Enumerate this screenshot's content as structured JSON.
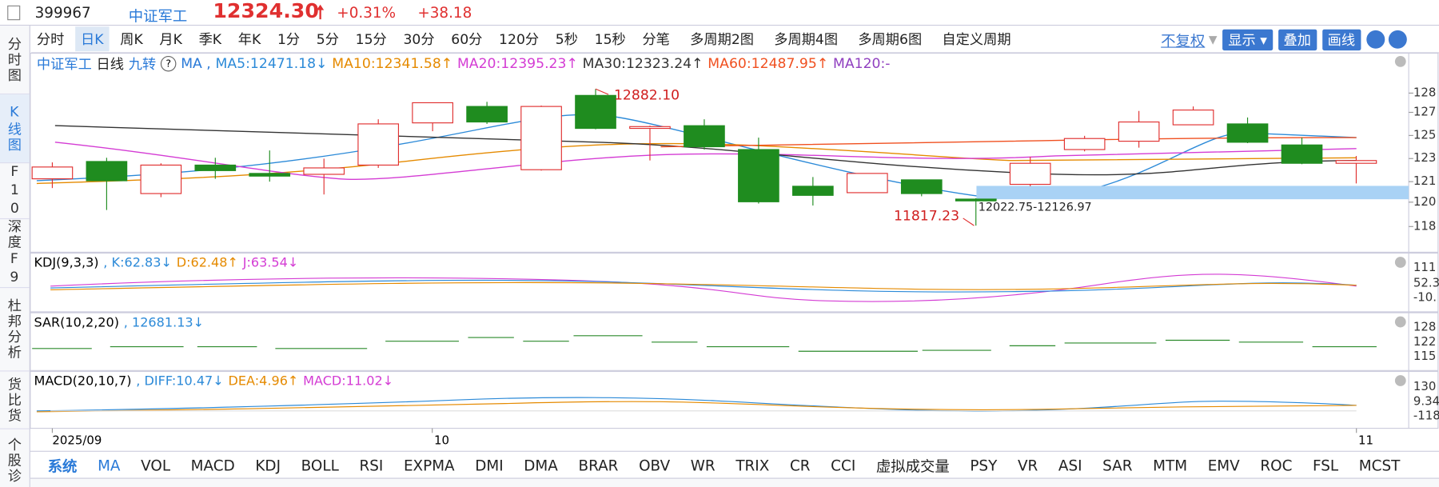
{
  "header": {
    "code": "399967",
    "name": "中证军工",
    "price": "12324.30",
    "change_pct": "+0.31%",
    "change": "+38.18"
  },
  "left_tabs": [
    "分时图",
    "K线图",
    "F10",
    "深度F9",
    "杜邦分析",
    "货比货",
    "个股诊"
  ],
  "period_tabs": [
    "分时",
    "日K",
    "周K",
    "月K",
    "季K",
    "年K",
    "1分",
    "5分",
    "15分",
    "30分",
    "60分",
    "120分",
    "5秒",
    "15秒",
    "分笔",
    "多周期2图",
    "多周期4图",
    "多周期6图",
    "自定义周期"
  ],
  "controls": {
    "adjust": "不复权",
    "show": "显示",
    "overlay": "叠加",
    "draw": "画线"
  },
  "legend": {
    "name": "中证军工",
    "period": "日线",
    "jiuzhuan": "九转",
    "ma": "MA ,",
    "ma5": "MA5:12471.18↓",
    "ma10": "MA10:12341.58↑",
    "ma20": "MA20:12395.23↑",
    "ma30": "MA30:12323.24↑",
    "ma60": "MA60:12487.95↑",
    "ma120": "MA120:-"
  },
  "price_axis": {
    "ticks": [
      {
        "value": 12850,
        "label": "128"
      },
      {
        "value": 12700,
        "label": "127"
      },
      {
        "value": 12520,
        "label": "125"
      },
      {
        "value": 12340,
        "label": "123"
      },
      {
        "value": 12160,
        "label": "121"
      },
      {
        "value": 12000,
        "label": "120"
      },
      {
        "value": 11810,
        "label": "118"
      }
    ]
  },
  "candles": [
    {
      "o": 12182,
      "h": 12310,
      "l": 12110,
      "c": 12274
    },
    {
      "o": 12317,
      "h": 12346,
      "l": 11939,
      "c": 12167
    },
    {
      "o": 12067,
      "h": 12303,
      "l": 12039,
      "c": 12289
    },
    {
      "o": 12289,
      "h": 12346,
      "l": 12182,
      "c": 12246
    },
    {
      "o": 12224,
      "h": 12403,
      "l": 12160,
      "c": 12203
    },
    {
      "o": 12217,
      "h": 12339,
      "l": 12060,
      "c": 12267
    },
    {
      "o": 12289,
      "h": 12646,
      "l": 12267,
      "c": 12610
    },
    {
      "o": 12618,
      "h": 12775,
      "l": 12553,
      "c": 12775
    },
    {
      "o": 12746,
      "h": 12782,
      "l": 12610,
      "c": 12625
    },
    {
      "o": 12253,
      "h": 12753,
      "l": 12246,
      "c": 12746
    },
    {
      "o": 12832,
      "h": 12882.1,
      "l": 12568,
      "c": 12575
    },
    {
      "o": 12575,
      "h": 12596,
      "l": 12325,
      "c": 12589
    },
    {
      "o": 12596,
      "h": 12646,
      "l": 12410,
      "c": 12432
    },
    {
      "o": 12410,
      "h": 12503,
      "l": 11989,
      "c": 12003
    },
    {
      "o": 12124,
      "h": 12196,
      "l": 11974,
      "c": 12053
    },
    {
      "o": 12074,
      "h": 12224,
      "l": 12074,
      "c": 12224
    },
    {
      "o": 12174,
      "h": 12174,
      "l": 12046,
      "c": 12067
    },
    {
      "o": 12024,
      "h": 12031,
      "l": 11817.23,
      "c": 12010
    },
    {
      "o": 12139,
      "h": 12353,
      "l": 12124,
      "c": 12303
    },
    {
      "o": 12410,
      "h": 12517,
      "l": 12396,
      "c": 12496
    },
    {
      "o": 12475,
      "h": 12711,
      "l": 12425,
      "c": 12625
    },
    {
      "o": 12603,
      "h": 12746,
      "l": 12603,
      "c": 12718
    },
    {
      "o": 12610,
      "h": 12660,
      "l": 12460,
      "c": 12467
    },
    {
      "o": 12446,
      "h": 12503,
      "l": 12296,
      "c": 12303
    },
    {
      "o": 12303,
      "h": 12360,
      "l": 12146,
      "c": 12324.3
    }
  ],
  "annotations": {
    "high": "12882.10",
    "low": "11817.23"
  },
  "gap_zone": {
    "low": 12022.75,
    "high": 12126.97,
    "label": "12022.75-12126.97"
  },
  "kdj": {
    "name": "KDJ(9,3,3)",
    "k": ", K:62.83↓",
    "d": "D:62.48↑",
    "j": "J:63.54↓",
    "axis": [
      "111",
      "52.3",
      "-10."
    ]
  },
  "sar": {
    "name": "SAR(10,2,20)",
    "v": ", 12681.13↓",
    "axis": [
      "128",
      "122",
      "115"
    ]
  },
  "macd": {
    "name": "MACD(20,10,7)",
    "diff": ", DIFF:10.47↓",
    "dea": "DEA:4.96↑",
    "macd": "MACD:11.02↓",
    "axis": [
      "130",
      "9.34",
      "-118"
    ]
  },
  "x_axis": [
    "2025/09",
    "10",
    "11"
  ],
  "bottom_tabs": [
    "系统",
    "MA",
    "VOL",
    "MACD",
    "KDJ",
    "BOLL",
    "RSI",
    "EXPMA",
    "DMI",
    "DMA",
    "BRAR",
    "OBV",
    "WR",
    "TRIX",
    "CR",
    "CCI",
    "虚拟成交量",
    "PSY",
    "VR",
    "ASI",
    "SAR",
    "MTM",
    "EMV",
    "ROC",
    "FSL",
    "MCST"
  ]
}
